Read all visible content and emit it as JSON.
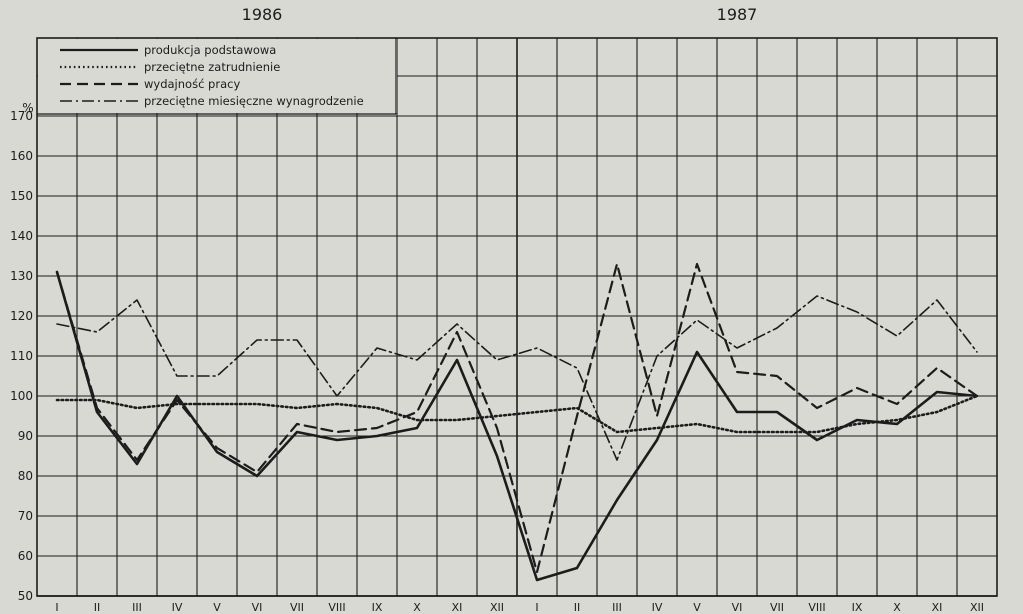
{
  "chart_data": {
    "type": "line",
    "ylabel": "%",
    "ylim": [
      50,
      170
    ],
    "yticks": [
      50,
      60,
      70,
      80,
      90,
      100,
      110,
      120,
      130,
      140,
      150,
      160,
      170
    ],
    "year_labels": [
      "1986",
      "1987"
    ],
    "categories": [
      "I",
      "II",
      "III",
      "IV",
      "V",
      "VI",
      "VII",
      "VIII",
      "IX",
      "X",
      "XI",
      "XII",
      "I",
      "II",
      "III",
      "IV",
      "V",
      "VI",
      "VII",
      "VIII",
      "IX",
      "X",
      "XI",
      "XII"
    ],
    "grid": true,
    "legend_position": "top-left",
    "series": [
      {
        "name": "produkcja podstawowa",
        "style": "solid",
        "values": [
          131,
          96,
          83,
          100,
          86,
          80,
          91,
          89,
          90,
          92,
          109,
          85,
          54,
          57,
          74,
          89,
          111,
          96,
          96,
          89,
          94,
          93,
          101,
          100
        ]
      },
      {
        "name": "przeciętne zatrudnienie",
        "style": "dotted",
        "values": [
          99,
          99,
          97,
          98,
          98,
          98,
          97,
          98,
          97,
          94,
          94,
          95,
          96,
          97,
          91,
          92,
          93,
          91,
          91,
          91,
          93,
          94,
          96,
          100
        ]
      },
      {
        "name": "wydajność pracy",
        "style": "dashed",
        "values": [
          131,
          97,
          84,
          99,
          87,
          81,
          93,
          91,
          92,
          96,
          116,
          92,
          56,
          95,
          133,
          95,
          133,
          106,
          105,
          97,
          102,
          98,
          107,
          100
        ]
      },
      {
        "name": "przeciętne miesięczne wynagrodzenie",
        "style": "dashdot",
        "values": [
          118,
          116,
          124,
          105,
          105,
          114,
          114,
          100,
          112,
          109,
          118,
          109,
          112,
          107,
          84,
          110,
          119,
          112,
          117,
          125,
          121,
          115,
          124,
          111
        ]
      }
    ]
  }
}
